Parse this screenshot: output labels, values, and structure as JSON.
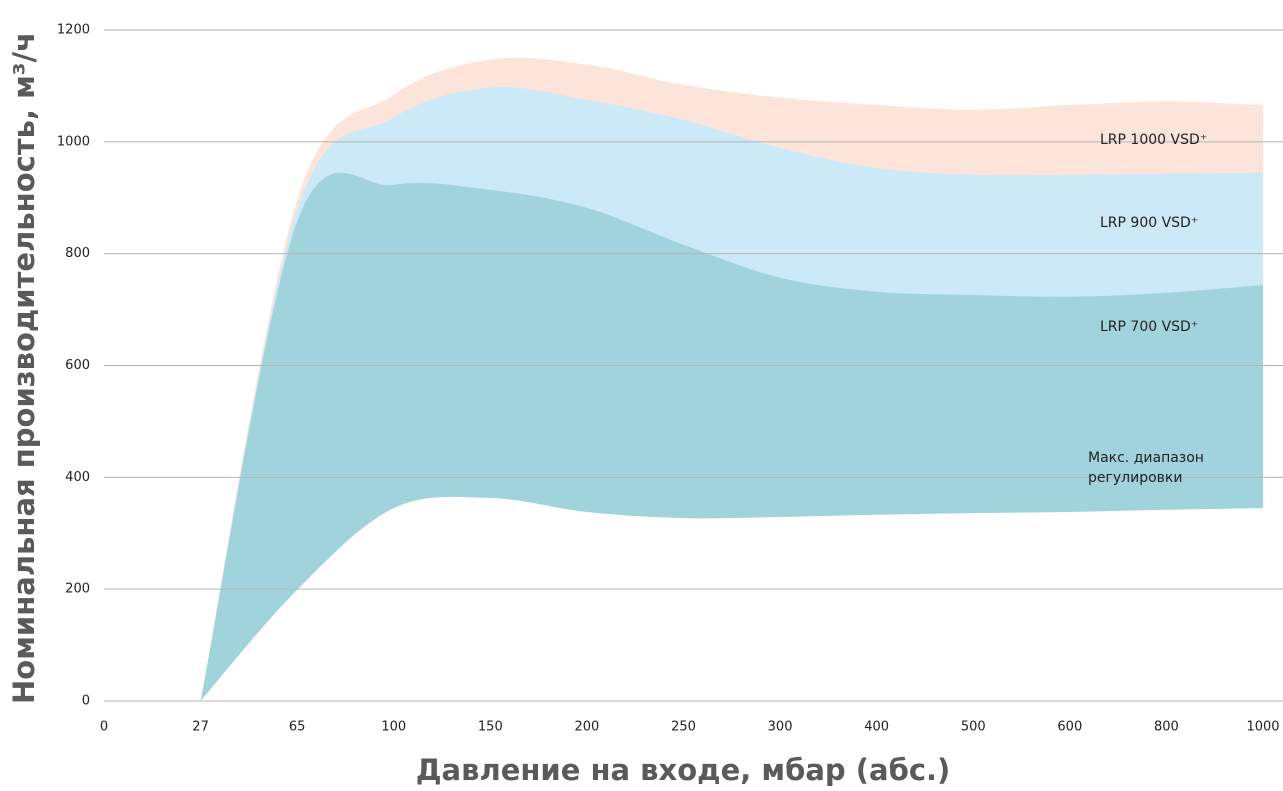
{
  "chart_data": {
    "type": "area",
    "x_label": "Давление на входе, мбар (абс.)",
    "y_label": "Номинальная производительность, м³/ч",
    "categories": [
      "0",
      "27",
      "65",
      "100",
      "150",
      "200",
      "250",
      "300",
      "400",
      "500",
      "600",
      "800",
      "1000"
    ],
    "series": [
      {
        "name": "LRP 1000 VSD⁺",
        "color": "#fde4da",
        "values": [
          null,
          0,
          896,
          1084,
          1147,
          1138,
          1102,
          1079,
          1066,
          1057,
          1066,
          1072,
          1066
        ]
      },
      {
        "name": "LRP 900 VSD⁺",
        "color": "#cbe9f6",
        "values": [
          null,
          0,
          878,
          1043,
          1097,
          1075,
          1039,
          989,
          953,
          941,
          941,
          943,
          945
        ]
      },
      {
        "name": "LRP 700 VSD⁺",
        "color": "#a1d3dd",
        "values": [
          null,
          0,
          857,
          923,
          914,
          882,
          816,
          757,
          732,
          726,
          723,
          730,
          744
        ]
      },
      {
        "name": "Макс. диапазон регулировки",
        "color": "#ffffff",
        "values": [
          null,
          0,
          199,
          345,
          363,
          338,
          327,
          329,
          333,
          336,
          338,
          342,
          345
        ]
      }
    ],
    "ylim": [
      0,
      1200
    ],
    "yticks": [
      0,
      200,
      400,
      600,
      800,
      1000,
      1200
    ],
    "grid": true
  }
}
